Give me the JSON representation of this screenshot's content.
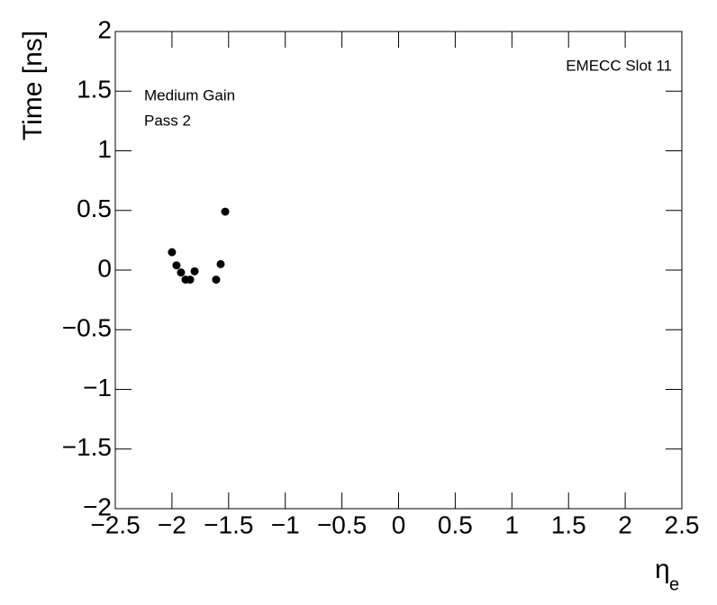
{
  "chart_data": {
    "type": "scatter",
    "x_label": "η",
    "x_label_subscript": "e",
    "y_label": "Time [ns]",
    "annotations": [
      "EMECC Slot 11",
      "Medium Gain",
      "Pass 2"
    ],
    "color": "#000000",
    "series": [
      {
        "x": [
          -2.0,
          -1.96,
          -1.92,
          -1.88,
          -1.84,
          -1.8,
          -1.61,
          -1.57,
          -1.53
        ],
        "values": [
          0.15,
          0.04,
          -0.02,
          -0.08,
          -0.08,
          -0.01,
          -0.08,
          0.05,
          0.49
        ]
      }
    ],
    "xlim": [
      -2.5,
      2.5
    ],
    "ylim": [
      -2,
      2
    ],
    "xticks": [
      {
        "value": -2.5,
        "label": "−2.5"
      },
      {
        "value": -2,
        "label": "−2"
      },
      {
        "value": -1.5,
        "label": "−1.5"
      },
      {
        "value": -1,
        "label": "−1"
      },
      {
        "value": -0.5,
        "label": "−0.5"
      },
      0,
      0.5,
      1,
      1.5,
      2,
      2.5
    ],
    "yticks": [
      {
        "value": -2,
        "label": "−2"
      },
      {
        "value": -1.5,
        "label": "−1.5"
      },
      {
        "value": -1,
        "label": "−1"
      },
      {
        "value": -0.5,
        "label": "−0.5"
      },
      0,
      0.5,
      1,
      1.5,
      2
    ]
  }
}
